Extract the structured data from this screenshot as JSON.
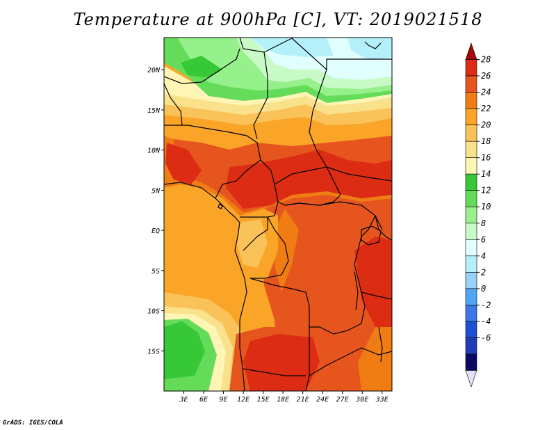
{
  "title": "Temperature at 900hPa [C], VT: 2019021518",
  "footer": "GrADS: IGES/COLA",
  "map": {
    "lon_range": [
      0,
      34.5
    ],
    "lat_range": [
      -20,
      24
    ],
    "lat_ticks": [
      {
        "value": 20,
        "label": "20N"
      },
      {
        "value": 15,
        "label": "15N"
      },
      {
        "value": 10,
        "label": "10N"
      },
      {
        "value": 5,
        "label": "5N"
      },
      {
        "value": 0,
        "label": "EQ"
      },
      {
        "value": -5,
        "label": "5S"
      },
      {
        "value": -10,
        "label": "10S"
      },
      {
        "value": -15,
        "label": "15S"
      }
    ],
    "lon_ticks": [
      {
        "value": 3,
        "label": "3E"
      },
      {
        "value": 6,
        "label": "6E"
      },
      {
        "value": 9,
        "label": "9E"
      },
      {
        "value": 12,
        "label": "12E"
      },
      {
        "value": 15,
        "label": "15E"
      },
      {
        "value": 18,
        "label": "18E"
      },
      {
        "value": 21,
        "label": "21E"
      },
      {
        "value": 24,
        "label": "24E"
      },
      {
        "value": 27,
        "label": "27E"
      },
      {
        "value": 30,
        "label": "30E"
      },
      {
        "value": 33,
        "label": "33E"
      }
    ]
  },
  "colorbar": {
    "levels": [
      "28",
      "26",
      "24",
      "22",
      "20",
      "18",
      "16",
      "14",
      "12",
      "10",
      "8",
      "6",
      "4",
      "2",
      "0",
      "-2",
      "-4",
      "-6"
    ],
    "colors": [
      "#a50a0a",
      "#dc2d14",
      "#e6551e",
      "#f07d14",
      "#faa528",
      "#fac35a",
      "#fae18c",
      "#fff5b4",
      "#37c837",
      "#64dc5a",
      "#96f08c",
      "#c8fac8",
      "#e1ffff",
      "#b4f0fa",
      "#96d2fa",
      "#50a5f5",
      "#3c78e6",
      "#1e50d2",
      "#1e3cb4",
      "#0a0a64",
      "#e1e1fa"
    ]
  },
  "fields": {
    "colors": {
      "t10": "#c8fac8",
      "t12": "#96f08c",
      "t14": "#64dc5a",
      "t16": "#37c837",
      "t18": "#fff5b4",
      "t20": "#fae18c",
      "t22": "#fac35a",
      "t24": "#faa528",
      "t26": "#f07d14",
      "t28": "#e6551e",
      "t30": "#dc2d14",
      "t8": "#e1ffff",
      "t6": "#b4f0fa"
    }
  }
}
